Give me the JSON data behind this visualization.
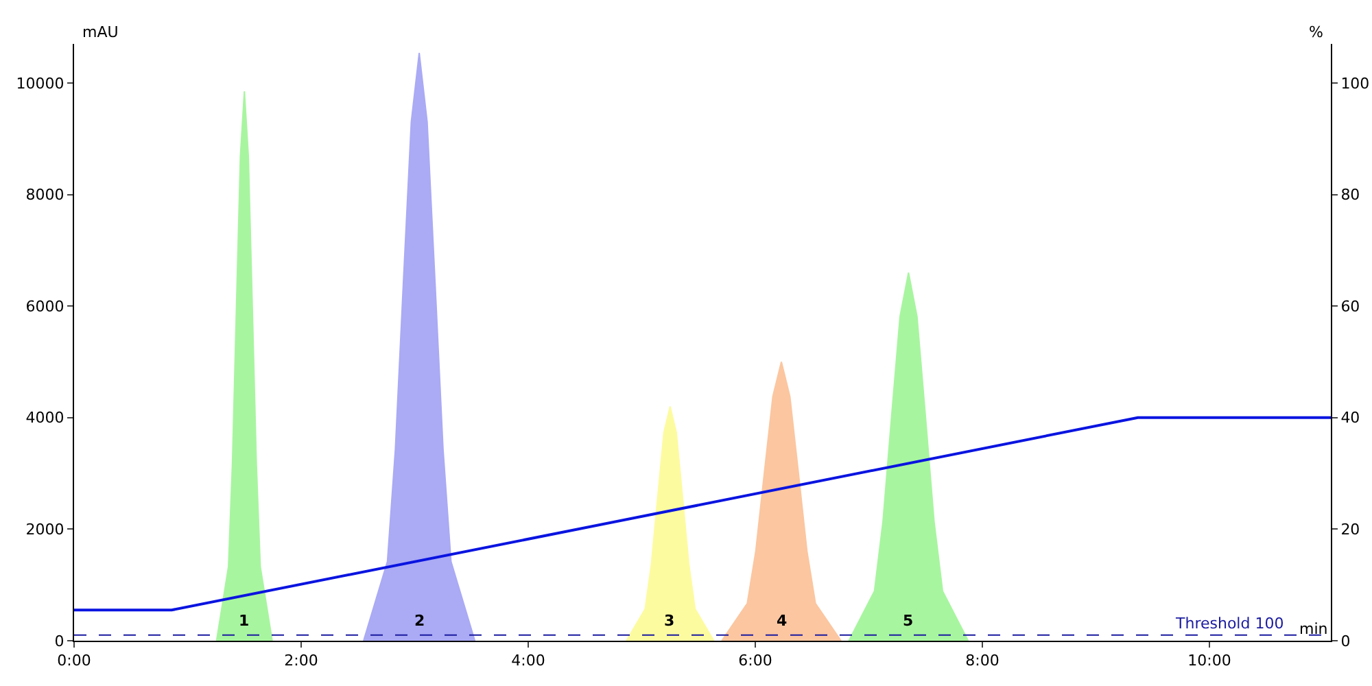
{
  "chart_data": {
    "type": "area",
    "xlabel": "min",
    "ylabel": "mAU",
    "y2label": "%",
    "xlim": [
      0,
      11.07
    ],
    "ylim": [
      0,
      10700
    ],
    "y2lim": [
      0,
      107
    ],
    "xticks": [
      {
        "value": 0,
        "label": "0:00"
      },
      {
        "value": 2,
        "label": "2:00"
      },
      {
        "value": 4,
        "label": "4:00"
      },
      {
        "value": 6,
        "label": "6:00"
      },
      {
        "value": 8,
        "label": "8:00"
      },
      {
        "value": 10,
        "label": "10:00"
      }
    ],
    "yticks": [
      0,
      2000,
      4000,
      6000,
      8000,
      10000
    ],
    "y2ticks": [
      0,
      20,
      40,
      60,
      80,
      100
    ],
    "grid": false,
    "legend": false,
    "marker": "none",
    "series": [
      {
        "name": "1",
        "color": "#a8f5a0",
        "x": [
          1.255,
          1.36,
          1.395,
          1.43,
          1.465,
          1.5,
          1.535,
          1.57,
          1.605,
          1.64,
          1.745
        ],
        "values": [
          0,
          1330,
          3200,
          5980,
          8690,
          9850,
          8690,
          5980,
          3200,
          1330,
          0
        ]
      },
      {
        "name": "2",
        "color": "#aaaaf5",
        "x": [
          2.55,
          2.76,
          2.83,
          2.9,
          2.97,
          3.04,
          3.11,
          3.18,
          3.25,
          3.32,
          3.53
        ],
        "values": [
          0,
          1420,
          3430,
          6400,
          9300,
          10540,
          9300,
          6400,
          3430,
          1420,
          0
        ]
      },
      {
        "name": "3",
        "color": "#fdfba0",
        "x": [
          4.865,
          5.03,
          5.085,
          5.14,
          5.195,
          5.25,
          5.305,
          5.36,
          5.415,
          5.47,
          5.635
        ],
        "values": [
          0,
          570,
          1370,
          2560,
          3730,
          4200,
          3730,
          2560,
          1370,
          570,
          0
        ]
      },
      {
        "name": "4",
        "color": "#fbc6a0",
        "x": [
          5.705,
          5.93,
          6.005,
          6.08,
          6.155,
          6.23,
          6.305,
          6.38,
          6.455,
          6.53,
          6.755
        ],
        "values": [
          0,
          670,
          1610,
          3010,
          4380,
          5000,
          4380,
          3010,
          1610,
          670,
          0
        ]
      },
      {
        "name": "5",
        "color": "#a8f5a0",
        "x": [
          6.825,
          7.05,
          7.125,
          7.2,
          7.275,
          7.35,
          7.425,
          7.5,
          7.575,
          7.65,
          7.875
        ],
        "values": [
          0,
          890,
          2140,
          4000,
          5810,
          6600,
          5810,
          4000,
          2140,
          890,
          0
        ]
      },
      {
        "type": "line",
        "axis": "y2",
        "color": "#0a14e0",
        "x": [
          0,
          0.86,
          9.37,
          11.07
        ],
        "values": [
          5.5,
          5.5,
          40,
          40
        ]
      }
    ],
    "ref_lines": [
      {
        "axis": "y",
        "value": 100,
        "label": "Threshold 100",
        "color": "#1a1aa0",
        "line_style": "dashed"
      }
    ]
  }
}
